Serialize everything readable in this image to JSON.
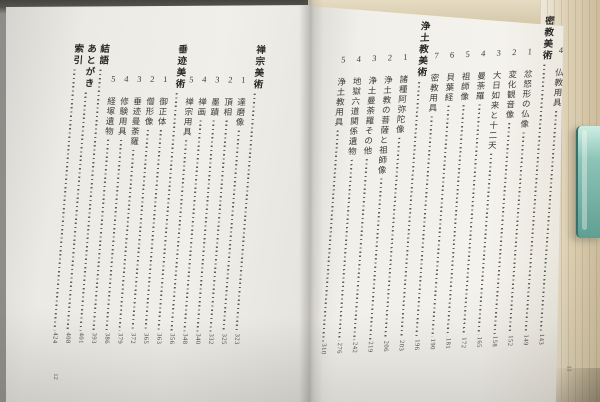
{
  "photo": {
    "description": "Photograph of an open Japanese book showing a two-page vertical table of contents",
    "colors": {
      "table_shadow": "#45443f",
      "paper_left": "#efede8",
      "paper_right": "#f3f1eb",
      "fore_edge_cream": "#ddd0b3",
      "bookmark_teal": "#8cc4b6",
      "ink": "#3c3a38"
    }
  },
  "right_page": {
    "folio": "11",
    "entries": [
      {
        "type": "item",
        "label": "4 仏教用具",
        "page": "143"
      },
      {
        "type": "heading",
        "label": "密教美術",
        "page": "149"
      },
      {
        "type": "item",
        "label": "1 忿怒形の仏像",
        "page": "152"
      },
      {
        "type": "item",
        "label": "2 変化観音像",
        "page": "158"
      },
      {
        "type": "item",
        "label": "3 大日如来と十二天",
        "page": "165"
      },
      {
        "type": "item",
        "label": "4 曼荼羅",
        "page": "172"
      },
      {
        "type": "item",
        "label": "5 祖師像",
        "page": "181"
      },
      {
        "type": "item",
        "label": "6 貝葉経",
        "page": "190"
      },
      {
        "type": "item",
        "label": "7 密教用具",
        "page": "196"
      },
      {
        "type": "heading",
        "label": "浄土教美術",
        "page": "203"
      },
      {
        "type": "item",
        "label": "1 諸種阿弥陀像",
        "page": "206"
      },
      {
        "type": "item",
        "label": "2 浄土教の菩薩と祖師像",
        "page": "219"
      },
      {
        "type": "item",
        "label": "3 浄土曼荼羅その他",
        "page": "242"
      },
      {
        "type": "item",
        "label": "4 地獄六道関係遺物",
        "page": "276"
      },
      {
        "type": "item",
        "label": "5 浄土教用具",
        "page": "310"
      }
    ]
  },
  "left_page": {
    "folio": "12",
    "entries": [
      {
        "type": "heading",
        "label": "禅宗美術",
        "page": "323"
      },
      {
        "type": "item",
        "label": "1 達磨像",
        "page": "325"
      },
      {
        "type": "item",
        "label": "2 頂相",
        "page": "332"
      },
      {
        "type": "item",
        "label": "3 墨蹟",
        "page": "340"
      },
      {
        "type": "item",
        "label": "4 禅画",
        "page": "348"
      },
      {
        "type": "item",
        "label": "5 禅宗用具",
        "page": "356"
      },
      {
        "type": "heading",
        "label": "垂迹美術",
        "page": "363"
      },
      {
        "type": "item",
        "label": "1 御正体",
        "page": "365"
      },
      {
        "type": "item",
        "label": "2 僧形像",
        "page": "372"
      },
      {
        "type": "item",
        "label": "3 垂迹曼荼羅",
        "page": "379"
      },
      {
        "type": "item",
        "label": "4 修験用具",
        "page": "386"
      },
      {
        "type": "item",
        "label": "5 経塚遺物",
        "page": "393"
      },
      {
        "type": "heading",
        "label": "結語",
        "page": "401"
      },
      {
        "type": "heading",
        "label": "あとがき",
        "page": "408"
      },
      {
        "type": "heading",
        "label": "索引",
        "page": "424"
      }
    ]
  }
}
